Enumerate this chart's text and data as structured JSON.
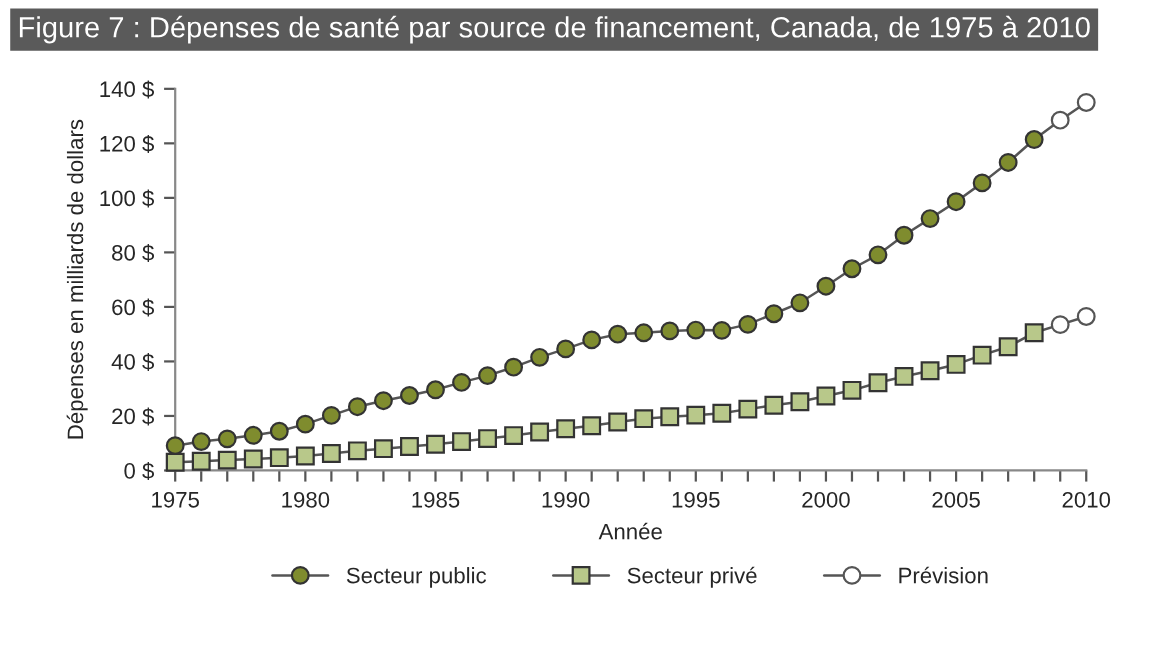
{
  "chart_data": {
    "type": "line",
    "title": "Figure 7 : Dépenses de santé par source de financement, Canada, de 1975 à 2010",
    "xlabel": "Année",
    "ylabel": "Dépenses en milliards de dollars",
    "xlim": [
      1975,
      2010
    ],
    "ylim": [
      0,
      140
    ],
    "xticks": [
      1975,
      {
        "value": 1976,
        "label": null
      },
      {
        "value": 1977,
        "label": null
      },
      {
        "value": 1978,
        "label": null
      },
      {
        "value": 1979,
        "label": null
      },
      1980,
      {
        "value": 1981,
        "label": null
      },
      {
        "value": 1982,
        "label": null
      },
      {
        "value": 1983,
        "label": null
      },
      {
        "value": 1984,
        "label": null
      },
      1985,
      {
        "value": 1986,
        "label": null
      },
      {
        "value": 1987,
        "label": null
      },
      {
        "value": 1988,
        "label": null
      },
      {
        "value": 1989,
        "label": null
      },
      1990,
      {
        "value": 1991,
        "label": null
      },
      {
        "value": 1992,
        "label": null
      },
      {
        "value": 1993,
        "label": null
      },
      {
        "value": 1994,
        "label": null
      },
      1995,
      {
        "value": 1996,
        "label": null
      },
      {
        "value": 1997,
        "label": null
      },
      {
        "value": 1998,
        "label": null
      },
      {
        "value": 1999,
        "label": null
      },
      2000,
      {
        "value": 2001,
        "label": null
      },
      {
        "value": 2002,
        "label": null
      },
      {
        "value": 2003,
        "label": null
      },
      {
        "value": 2004,
        "label": null
      },
      2005,
      {
        "value": 2006,
        "label": null
      },
      {
        "value": 2007,
        "label": null
      },
      {
        "value": 2008,
        "label": null
      },
      {
        "value": 2009,
        "label": null
      },
      2010
    ],
    "yticks": [
      {
        "value": 0,
        "label": "0 $"
      },
      {
        "value": 20,
        "label": "20 $"
      },
      {
        "value": 40,
        "label": "40 $"
      },
      {
        "value": 60,
        "label": "60 $"
      },
      {
        "value": 80,
        "label": "80 $"
      },
      {
        "value": 100,
        "label": "100 $"
      },
      {
        "value": 120,
        "label": "120 $"
      },
      {
        "value": 140,
        "label": "140 $"
      }
    ],
    "grid": false,
    "legend": "bottom",
    "series": [
      {
        "name": "Secteur public",
        "color": "#7f8c2e",
        "marker": "circle",
        "x": [
          1975,
          1976,
          1977,
          1978,
          1979,
          1980,
          1981,
          1982,
          1983,
          1984,
          1985,
          1986,
          1987,
          1988,
          1989,
          1990,
          1991,
          1992,
          1993,
          1994,
          1995,
          1996,
          1997,
          1998,
          1999,
          2000,
          2001,
          2002,
          2003,
          2004,
          2005,
          2006,
          2007,
          2008
        ],
        "values": [
          9.1,
          10.6,
          11.6,
          12.9,
          14.4,
          17.0,
          20.2,
          23.4,
          25.6,
          27.5,
          29.6,
          32.3,
          34.8,
          37.9,
          41.5,
          44.6,
          47.9,
          50.0,
          50.5,
          51.2,
          51.5,
          51.4,
          53.6,
          57.5,
          61.5,
          67.6,
          74.0,
          79.1,
          86.3,
          92.4,
          98.6,
          105.5,
          113.0,
          121.4
        ]
      },
      {
        "name": "Secteur privé",
        "color": "#b8c88a",
        "marker": "square",
        "x": [
          1975,
          1976,
          1977,
          1978,
          1979,
          1980,
          1981,
          1982,
          1983,
          1984,
          1985,
          1986,
          1987,
          1988,
          1989,
          1990,
          1991,
          1992,
          1993,
          1994,
          1995,
          1996,
          1997,
          1998,
          1999,
          2000,
          2001,
          2002,
          2003,
          2004,
          2005,
          2006,
          2007,
          2008
        ],
        "values": [
          3.0,
          3.4,
          3.8,
          4.2,
          4.7,
          5.3,
          6.2,
          7.2,
          8.0,
          8.8,
          9.6,
          10.6,
          11.7,
          12.8,
          14.1,
          15.3,
          16.4,
          17.8,
          19.0,
          19.7,
          20.3,
          21.0,
          22.5,
          23.9,
          25.2,
          27.3,
          29.4,
          32.2,
          34.5,
          36.6,
          38.9,
          42.3,
          45.4,
          50.5
        ]
      },
      {
        "name": "Prévision",
        "color": "#555555",
        "marker": "circle",
        "x": [
          2008,
          2009,
          2010
        ],
        "values": [
          121.4,
          128.5,
          135
        ]
      },
      {
        "color": "#555555",
        "marker": "circle",
        "x": [
          2008,
          2009,
          2010
        ],
        "values": [
          50.5,
          53.5,
          56.5
        ]
      }
    ]
  }
}
